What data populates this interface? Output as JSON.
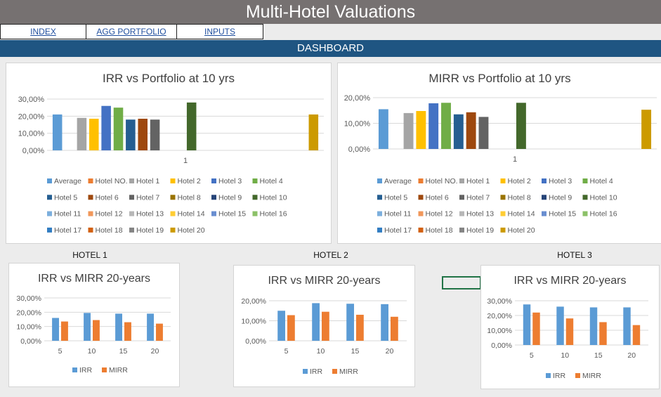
{
  "header": {
    "title": "Multi-Hotel Valuations"
  },
  "nav": {
    "items": [
      {
        "label": "INDEX"
      },
      {
        "label": "AGG PORTFOLIO"
      },
      {
        "label": "INPUTS"
      }
    ]
  },
  "dashboard": {
    "label": "DASHBOARD"
  },
  "hotels": {
    "h1": "HOTEL 1",
    "h2": "HOTEL 2",
    "h3": "HOTEL 3"
  },
  "colors": {
    "title_bar": "#767171",
    "dashboard_bar": "#1f5582",
    "nav_link": "#1f4e9e",
    "irr": "#5b9bd5",
    "mirr": "#ed7d31"
  },
  "chart_data": [
    {
      "type": "bar",
      "title": "IRR vs Portfolio at 10 yrs",
      "categories": [
        "1"
      ],
      "ylim": [
        0,
        30
      ],
      "yticks": [
        "0,00%",
        "10,00%",
        "20,00%",
        "30,00%"
      ],
      "legend_position": "bottom",
      "grid": true,
      "series": [
        {
          "name": "Average",
          "value": 21,
          "color": "#5b9bd5"
        },
        {
          "name": "Hotel NO.",
          "value": 0,
          "color": "#ed7d31"
        },
        {
          "name": "Hotel 1",
          "value": 19,
          "color": "#a5a5a5"
        },
        {
          "name": "Hotel 2",
          "value": 18.5,
          "color": "#ffc000"
        },
        {
          "name": "Hotel 3",
          "value": 26,
          "color": "#4472c4"
        },
        {
          "name": "Hotel 4",
          "value": 25,
          "color": "#70ad47"
        },
        {
          "name": "Hotel 5",
          "value": 18,
          "color": "#255e91"
        },
        {
          "name": "Hotel 6",
          "value": 18.5,
          "color": "#9e480e"
        },
        {
          "name": "Hotel 7",
          "value": 18,
          "color": "#636363"
        },
        {
          "name": "Hotel 8",
          "value": 0,
          "color": "#997300"
        },
        {
          "name": "Hotel 9",
          "value": 0,
          "color": "#264478"
        },
        {
          "name": "Hotel 10",
          "value": 28,
          "color": "#43682b"
        },
        {
          "name": "Hotel 11",
          "value": 0,
          "color": "#7cafdd"
        },
        {
          "name": "Hotel 12",
          "value": 0,
          "color": "#f1975a"
        },
        {
          "name": "Hotel 13",
          "value": 0,
          "color": "#b7b7b7"
        },
        {
          "name": "Hotel 14",
          "value": 0,
          "color": "#ffcd33"
        },
        {
          "name": "Hotel 15",
          "value": 0,
          "color": "#698ed0"
        },
        {
          "name": "Hotel 16",
          "value": 0,
          "color": "#8cc168"
        },
        {
          "name": "Hotel 17",
          "value": 0,
          "color": "#327dc2"
        },
        {
          "name": "Hotel 18",
          "value": 0,
          "color": "#d26012"
        },
        {
          "name": "Hotel 19",
          "value": 0,
          "color": "#848484"
        },
        {
          "name": "Hotel 20",
          "value": 21,
          "color": "#cc9a00"
        }
      ]
    },
    {
      "type": "bar",
      "title": "MIRR vs Portfolio at 10 yrs",
      "categories": [
        "1"
      ],
      "ylim": [
        0,
        20
      ],
      "yticks": [
        "0,00%",
        "10,00%",
        "20,00%"
      ],
      "legend_position": "bottom",
      "grid": true,
      "series": [
        {
          "name": "Average",
          "value": 15.5,
          "color": "#5b9bd5"
        },
        {
          "name": "Hotel NO.",
          "value": 0,
          "color": "#ed7d31"
        },
        {
          "name": "Hotel 1",
          "value": 14,
          "color": "#a5a5a5"
        },
        {
          "name": "Hotel 2",
          "value": 14.8,
          "color": "#ffc000"
        },
        {
          "name": "Hotel 3",
          "value": 17.8,
          "color": "#4472c4"
        },
        {
          "name": "Hotel 4",
          "value": 18,
          "color": "#70ad47"
        },
        {
          "name": "Hotel 5",
          "value": 13.5,
          "color": "#255e91"
        },
        {
          "name": "Hotel 6",
          "value": 14.3,
          "color": "#9e480e"
        },
        {
          "name": "Hotel 7",
          "value": 12.5,
          "color": "#636363"
        },
        {
          "name": "Hotel 8",
          "value": 0,
          "color": "#997300"
        },
        {
          "name": "Hotel 9",
          "value": 0,
          "color": "#264478"
        },
        {
          "name": "Hotel 10",
          "value": 18,
          "color": "#43682b"
        },
        {
          "name": "Hotel 11",
          "value": 0,
          "color": "#7cafdd"
        },
        {
          "name": "Hotel 12",
          "value": 0,
          "color": "#f1975a"
        },
        {
          "name": "Hotel 13",
          "value": 0,
          "color": "#b7b7b7"
        },
        {
          "name": "Hotel 14",
          "value": 0,
          "color": "#ffcd33"
        },
        {
          "name": "Hotel 15",
          "value": 0,
          "color": "#698ed0"
        },
        {
          "name": "Hotel 16",
          "value": 0,
          "color": "#8cc168"
        },
        {
          "name": "Hotel 17",
          "value": 0,
          "color": "#327dc2"
        },
        {
          "name": "Hotel 18",
          "value": 0,
          "color": "#d26012"
        },
        {
          "name": "Hotel 19",
          "value": 0,
          "color": "#848484"
        },
        {
          "name": "Hotel 20",
          "value": 15.3,
          "color": "#cc9a00"
        }
      ]
    },
    {
      "type": "bar",
      "title": "IRR vs MIRR 20-years",
      "categories": [
        "5",
        "10",
        "15",
        "20"
      ],
      "ylim": [
        0,
        30
      ],
      "yticks": [
        "0,00%",
        "10,00%",
        "20,00%",
        "30,00%"
      ],
      "legend_position": "bottom",
      "grid": true,
      "series": [
        {
          "name": "IRR",
          "values": [
            16,
            19.5,
            19,
            19
          ],
          "color": "#5b9bd5"
        },
        {
          "name": "MIRR",
          "values": [
            13.5,
            14.5,
            13,
            12
          ],
          "color": "#ed7d31"
        }
      ]
    },
    {
      "type": "bar",
      "title": "IRR vs MIRR 20-years",
      "categories": [
        "5",
        "10",
        "15",
        "20"
      ],
      "ylim": [
        0,
        20
      ],
      "yticks": [
        "0,00%",
        "10,00%",
        "20,00%"
      ],
      "legend_position": "bottom",
      "grid": true,
      "series": [
        {
          "name": "IRR",
          "values": [
            15,
            18.8,
            18.5,
            18.3
          ],
          "color": "#5b9bd5"
        },
        {
          "name": "MIRR",
          "values": [
            12.8,
            14.5,
            13,
            12
          ],
          "color": "#ed7d31"
        }
      ]
    },
    {
      "type": "bar",
      "title": "IRR vs MIRR 20-years",
      "categories": [
        "5",
        "10",
        "15",
        "20"
      ],
      "ylim": [
        0,
        30
      ],
      "yticks": [
        "0,00%",
        "10,00%",
        "20,00%",
        "30,00%"
      ],
      "legend_position": "bottom",
      "grid": true,
      "series": [
        {
          "name": "IRR",
          "values": [
            27.5,
            26,
            25.5,
            25.5
          ],
          "color": "#5b9bd5"
        },
        {
          "name": "MIRR",
          "values": [
            22,
            18,
            15.5,
            13.5
          ],
          "color": "#ed7d31"
        }
      ]
    }
  ]
}
